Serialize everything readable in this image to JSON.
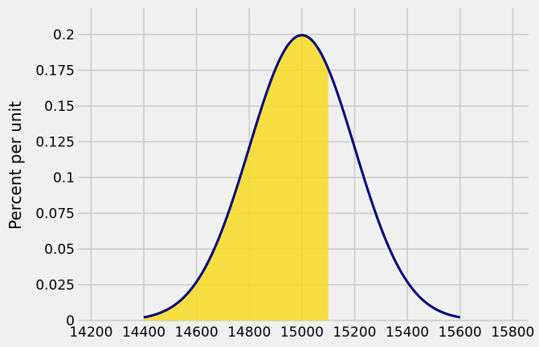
{
  "chart_data": {
    "type": "area",
    "title": "",
    "xlabel": "",
    "ylabel": "Percent per unit",
    "xlim": [
      14150,
      15860
    ],
    "ylim": [
      0,
      0.2185
    ],
    "x_ticks": [
      14200,
      14400,
      14600,
      14800,
      15000,
      15200,
      15400,
      15600,
      15800
    ],
    "x_tick_labels": [
      "14200",
      "14400",
      "14600",
      "14800",
      "15000",
      "15200",
      "15400",
      "15600",
      "15800"
    ],
    "y_ticks": [
      0,
      0.025,
      0.05,
      0.075,
      0.1,
      0.125,
      0.15,
      0.175,
      0.2
    ],
    "y_tick_labels": [
      "0",
      "0.025",
      "0.05",
      "0.075",
      "0.1",
      "0.125",
      "0.15",
      "0.175",
      "0.2"
    ],
    "grid": true,
    "series": [
      {
        "kind": "normal-curve",
        "mean": 15000,
        "sd": 200,
        "x_range": [
          14400,
          15600
        ],
        "peak_value": 0.1995,
        "color": "#00007f"
      },
      {
        "kind": "shaded-region",
        "x_from": 14400,
        "x_to": 15100,
        "color": "#f7d917"
      }
    ]
  },
  "colors": {
    "background": "#f0f0f0",
    "grid": "#cbcbcb",
    "curve": "#00007f",
    "fill": "#f7d917"
  }
}
